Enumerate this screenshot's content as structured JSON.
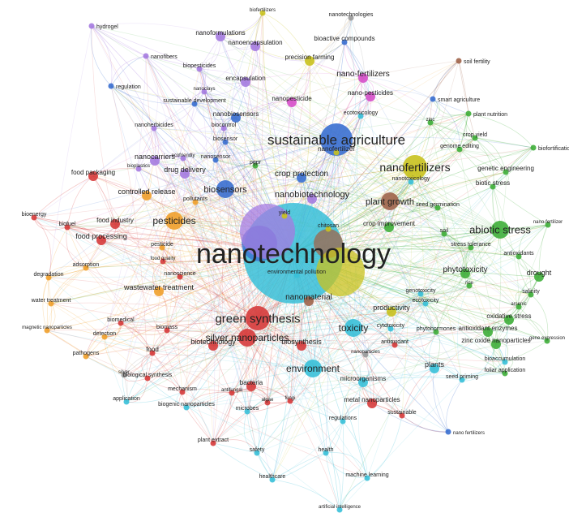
{
  "colors": {
    "red": "#d63b3b",
    "green": "#3fae3a",
    "blue": "#3a6fd0",
    "yellow": "#c9c21e",
    "purple": "#a57be0",
    "cyan": "#38c0d8",
    "orange": "#f0a02c",
    "magenta": "#d64fc9",
    "brown": "#a0644a",
    "gray": "#9a9a9a"
  },
  "network": {
    "hub": "nanotechnology",
    "nodes": [
      {
        "id": "nanotechnology",
        "label": "nanotechnology",
        "weight": 10,
        "cluster": "cyan",
        "fs": 34
      },
      {
        "id": "sustainable_agriculture",
        "label": "sustainable agriculture",
        "weight": 5,
        "cluster": "blue",
        "fs": 17
      },
      {
        "id": "nanofertilizers",
        "label": "nanofertilizers",
        "weight": 4,
        "cluster": "yellow",
        "fs": 14
      },
      {
        "id": "green_synthesis",
        "label": "green synthesis",
        "weight": 4,
        "cluster": "red",
        "fs": 15
      },
      {
        "id": "abiotic_stress",
        "label": "abiotic stress",
        "weight": 3,
        "cluster": "green",
        "fs": 13
      },
      {
        "id": "toxicity",
        "label": "toxicity",
        "weight": 3,
        "cluster": "cyan",
        "fs": 12
      },
      {
        "id": "silver_np",
        "label": "silver nanoparticles",
        "weight": 3,
        "cluster": "red",
        "fs": 12
      },
      {
        "id": "environment",
        "label": "environment",
        "weight": 3,
        "cluster": "cyan",
        "fs": 12
      },
      {
        "id": "pesticides",
        "label": "pesticides",
        "weight": 3,
        "cluster": "orange",
        "fs": 12
      },
      {
        "id": "biosensors",
        "label": "biosensors",
        "weight": 3,
        "cluster": "blue",
        "fs": 11
      },
      {
        "id": "plant_growth",
        "label": "plant growth",
        "weight": 3,
        "cluster": "brown",
        "fs": 11
      },
      {
        "id": "nanobiotechnology",
        "label": "nanobiotechnology",
        "weight": 2,
        "cluster": "purple",
        "fs": 11
      },
      {
        "id": "phytotoxicity",
        "label": "phytotoxicity",
        "weight": 2,
        "cluster": "green",
        "fs": 10
      },
      {
        "id": "nano_fertilizers",
        "label": "nano-fertilizers",
        "weight": 2,
        "cluster": "magenta",
        "fs": 10
      },
      {
        "id": "crop_protection",
        "label": "crop protection",
        "weight": 2,
        "cluster": "blue",
        "fs": 10
      },
      {
        "id": "nanomaterial",
        "label": "nanomaterial",
        "weight": 2,
        "cluster": "brown",
        "fs": 10
      },
      {
        "id": "biosynthesis",
        "label": "biosynthesis",
        "weight": 2,
        "cluster": "red",
        "fs": 9
      },
      {
        "id": "biotechnology",
        "label": "biotechnology",
        "weight": 2,
        "cluster": "red",
        "fs": 9
      },
      {
        "id": "drug_delivery",
        "label": "drug delivery",
        "weight": 2,
        "cluster": "purple",
        "fs": 9
      },
      {
        "id": "nanocarriers",
        "label": "nanocarriers",
        "weight": 2,
        "cluster": "purple",
        "fs": 9
      },
      {
        "id": "controlled_release",
        "label": "controlled release",
        "weight": 2,
        "cluster": "orange",
        "fs": 9
      },
      {
        "id": "nanobiosensors",
        "label": "nanobiosensors",
        "weight": 2,
        "cluster": "blue",
        "fs": 8
      },
      {
        "id": "nanopesticide",
        "label": "nanopesticide",
        "weight": 2,
        "cluster": "magenta",
        "fs": 8
      },
      {
        "id": "nano_pesticides",
        "label": "nano-pesticides",
        "weight": 2,
        "cluster": "magenta",
        "fs": 8
      },
      {
        "id": "productivity",
        "label": "productivity",
        "weight": 2,
        "cluster": "yellow",
        "fs": 9
      },
      {
        "id": "plants",
        "label": "plants",
        "weight": 2,
        "cluster": "cyan",
        "fs": 9
      },
      {
        "id": "drought",
        "label": "drought",
        "weight": 2,
        "cluster": "green",
        "fs": 9
      },
      {
        "id": "crop_improvement",
        "label": "crop improvement",
        "weight": 2,
        "cluster": "green",
        "fs": 8
      },
      {
        "id": "food_processing",
        "label": "food processing",
        "weight": 2,
        "cluster": "red",
        "fs": 9
      },
      {
        "id": "food_industry",
        "label": "food industry",
        "weight": 2,
        "cluster": "red",
        "fs": 8
      },
      {
        "id": "food_packaging",
        "label": "food packaging",
        "weight": 2,
        "cluster": "red",
        "fs": 8
      },
      {
        "id": "wastewater_treatment",
        "label": "wastewater treatment",
        "weight": 2,
        "cluster": "orange",
        "fs": 9
      },
      {
        "id": "bacteria",
        "label": "bacteria",
        "weight": 2,
        "cluster": "red",
        "fs": 8
      },
      {
        "id": "microorganisms",
        "label": "microorganisms",
        "weight": 2,
        "cluster": "cyan",
        "fs": 8
      },
      {
        "id": "metal_np",
        "label": "metal nanoparticles",
        "weight": 2,
        "cluster": "red",
        "fs": 8
      },
      {
        "id": "antioxidant_enzymes",
        "label": "antioxidant enzymes",
        "weight": 2,
        "cluster": "green",
        "fs": 8
      },
      {
        "id": "zinc_oxide_np",
        "label": "zinc oxide nanoparticles",
        "weight": 2,
        "cluster": "green",
        "fs": 8
      },
      {
        "id": "oxidative_stress",
        "label": "oxidative stress",
        "weight": 2,
        "cluster": "green",
        "fs": 8
      },
      {
        "id": "precision_farming",
        "label": "precision farming",
        "weight": 2,
        "cluster": "yellow",
        "fs": 8
      },
      {
        "id": "bioactive_compounds",
        "label": "bioactive compounds",
        "weight": 1,
        "cluster": "blue",
        "fs": 8
      },
      {
        "id": "nanoencapsulation",
        "label": "nanoencapsulation",
        "weight": 2,
        "cluster": "purple",
        "fs": 8
      },
      {
        "id": "nanoformulations",
        "label": "nanoformulations",
        "weight": 2,
        "cluster": "purple",
        "fs": 8
      },
      {
        "id": "encapsulation",
        "label": "encapsulation",
        "weight": 2,
        "cluster": "purple",
        "fs": 8
      },
      {
        "id": "biopesticides",
        "label": "biopesticides",
        "weight": 1,
        "cluster": "purple",
        "fs": 7
      },
      {
        "id": "sustainable_development",
        "label": "sustainable development",
        "weight": 1,
        "cluster": "blue",
        "fs": 7
      },
      {
        "id": "nanoherbicides",
        "label": "nanoherbicides",
        "weight": 1,
        "cluster": "purple",
        "fs": 7
      },
      {
        "id": "biocontrol",
        "label": "biocontrol",
        "weight": 1,
        "cluster": "purple",
        "fs": 7
      },
      {
        "id": "biosensor",
        "label": "biosensor",
        "weight": 1,
        "cluster": "blue",
        "fs": 7
      },
      {
        "id": "nanosensor",
        "label": "nanosensor",
        "weight": 1,
        "cluster": "blue",
        "fs": 7
      },
      {
        "id": "pgpr",
        "label": "pgpr",
        "weight": 1,
        "cluster": "green",
        "fs": 7
      },
      {
        "id": "ecotoxicology",
        "label": "ecotoxicology",
        "weight": 1,
        "cluster": "cyan",
        "fs": 7
      },
      {
        "id": "nanofertilizer",
        "label": "nanofertilizer",
        "weight": 1,
        "cluster": "yellow",
        "fs": 8
      },
      {
        "id": "smart_agriculture",
        "label": "smart agriculture",
        "weight": 1,
        "cluster": "blue",
        "fs": 7
      },
      {
        "id": "plant_nutrition",
        "label": "plant nutrition",
        "weight": 1,
        "cluster": "green",
        "fs": 7
      },
      {
        "id": "zinc",
        "label": "zinc",
        "weight": 1,
        "cluster": "green",
        "fs": 6
      },
      {
        "id": "crop_yield",
        "label": "crop yield",
        "weight": 1,
        "cluster": "green",
        "fs": 7
      },
      {
        "id": "genome_editing",
        "label": "genome editing",
        "weight": 1,
        "cluster": "green",
        "fs": 7
      },
      {
        "id": "biofortification",
        "label": "biofortification",
        "weight": 1,
        "cluster": "green",
        "fs": 7
      },
      {
        "id": "genetic_engineering",
        "label": "genetic engineering",
        "weight": 1,
        "cluster": "green",
        "fs": 8
      },
      {
        "id": "biotic_stress",
        "label": "biotic stress",
        "weight": 1,
        "cluster": "green",
        "fs": 8
      },
      {
        "id": "nanotoxicology",
        "label": "nanotoxicology",
        "weight": 1,
        "cluster": "cyan",
        "fs": 7
      },
      {
        "id": "seed_germination",
        "label": "seed germination",
        "weight": 1,
        "cluster": "green",
        "fs": 7
      },
      {
        "id": "nano_fertilizer",
        "label": "nano-fertilizer",
        "weight": 1,
        "cluster": "green",
        "fs": 6
      },
      {
        "id": "soil",
        "label": "soil",
        "weight": 1,
        "cluster": "green",
        "fs": 7
      },
      {
        "id": "stress_tolerance",
        "label": "stress tolerance",
        "weight": 1,
        "cluster": "green",
        "fs": 7
      },
      {
        "id": "antioxidants",
        "label": "antioxidants",
        "weight": 1,
        "cluster": "green",
        "fs": 7
      },
      {
        "id": "salinity",
        "label": "salinity",
        "weight": 1,
        "cluster": "green",
        "fs": 7
      },
      {
        "id": "rice",
        "label": "rice",
        "weight": 1,
        "cluster": "green",
        "fs": 6
      },
      {
        "id": "arsenic",
        "label": "arsenic",
        "weight": 1,
        "cluster": "green",
        "fs": 6
      },
      {
        "id": "gene_expression",
        "label": "gene expression",
        "weight": 1,
        "cluster": "green",
        "fs": 6
      },
      {
        "id": "genotoxicity",
        "label": "genotoxicity",
        "weight": 1,
        "cluster": "cyan",
        "fs": 7
      },
      {
        "id": "ecotoxicity",
        "label": "ecotoxicity",
        "weight": 1,
        "cluster": "cyan",
        "fs": 7
      },
      {
        "id": "cytotoxicity",
        "label": "cytotoxicity",
        "weight": 1,
        "cluster": "cyan",
        "fs": 7
      },
      {
        "id": "phytohormones",
        "label": "phytohormones",
        "weight": 1,
        "cluster": "green",
        "fs": 7
      },
      {
        "id": "antioxidant",
        "label": "antioxidant",
        "weight": 1,
        "cluster": "red",
        "fs": 7
      },
      {
        "id": "bioaccumulation",
        "label": "bioaccumulation",
        "weight": 1,
        "cluster": "cyan",
        "fs": 7
      },
      {
        "id": "foliar_application",
        "label": "foliar application",
        "weight": 1,
        "cluster": "green",
        "fs": 7
      },
      {
        "id": "seed_priming",
        "label": "seed priming",
        "weight": 1,
        "cluster": "cyan",
        "fs": 7
      },
      {
        "id": "nano_fertilizers2",
        "label": "nano fertilizers",
        "weight": 1,
        "cluster": "blue",
        "fs": 6
      },
      {
        "id": "sustainable",
        "label": "sustainable",
        "weight": 1,
        "cluster": "red",
        "fs": 7
      },
      {
        "id": "regulations",
        "label": "regulations",
        "weight": 1,
        "cluster": "cyan",
        "fs": 7
      },
      {
        "id": "microbes",
        "label": "microbes",
        "weight": 1,
        "cluster": "cyan",
        "fs": 7
      },
      {
        "id": "algae",
        "label": "algae",
        "weight": 1,
        "cluster": "red",
        "fs": 6
      },
      {
        "id": "fungi",
        "label": "fungi",
        "weight": 1,
        "cluster": "red",
        "fs": 6
      },
      {
        "id": "antifungal",
        "label": "antifungal",
        "weight": 1,
        "cluster": "red",
        "fs": 6
      },
      {
        "id": "mechanism",
        "label": "mechanism",
        "weight": 1,
        "cluster": "red",
        "fs": 7
      },
      {
        "id": "biological_synthesis",
        "label": "biological synthesis",
        "weight": 1,
        "cluster": "red",
        "fs": 7
      },
      {
        "id": "biogenic_np",
        "label": "biogenic nanoparticles",
        "weight": 1,
        "cluster": "cyan",
        "fs": 7
      },
      {
        "id": "application",
        "label": "application",
        "weight": 1,
        "cluster": "cyan",
        "fs": 7
      },
      {
        "id": "plant_extract",
        "label": "plant extract",
        "weight": 1,
        "cluster": "red",
        "fs": 7
      },
      {
        "id": "safety",
        "label": "safety",
        "weight": 1,
        "cluster": "cyan",
        "fs": 7
      },
      {
        "id": "health",
        "label": "health",
        "weight": 1,
        "cluster": "cyan",
        "fs": 7
      },
      {
        "id": "healthcare",
        "label": "healthcare",
        "weight": 1,
        "cluster": "cyan",
        "fs": 7
      },
      {
        "id": "machine_learning",
        "label": "machine learning",
        "weight": 1,
        "cluster": "cyan",
        "fs": 7
      },
      {
        "id": "artificial_intelligence",
        "label": "artificial intelligence",
        "weight": 1,
        "cluster": "cyan",
        "fs": 6
      },
      {
        "id": "food",
        "label": "food",
        "weight": 1,
        "cluster": "red",
        "fs": 8
      },
      {
        "id": "pathogens",
        "label": "pathogens",
        "weight": 1,
        "cluster": "orange",
        "fs": 7
      },
      {
        "id": "detection",
        "label": "detection",
        "weight": 1,
        "cluster": "orange",
        "fs": 7
      },
      {
        "id": "magnetic_np",
        "label": "magnetic nanoparticles",
        "weight": 1,
        "cluster": "orange",
        "fs": 6
      },
      {
        "id": "biomedical",
        "label": "biomedical",
        "weight": 1,
        "cluster": "red",
        "fs": 7
      },
      {
        "id": "biomass",
        "label": "biomass",
        "weight": 1,
        "cluster": "red",
        "fs": 7
      },
      {
        "id": "water_treatment",
        "label": "water treatment",
        "weight": 1,
        "cluster": "orange",
        "fs": 7
      },
      {
        "id": "degradation",
        "label": "degradation",
        "weight": 1,
        "cluster": "orange",
        "fs": 7
      },
      {
        "id": "adsorption",
        "label": "adsorption",
        "weight": 1,
        "cluster": "orange",
        "fs": 7
      },
      {
        "id": "nanoscience",
        "label": "nanoscience",
        "weight": 1,
        "cluster": "red",
        "fs": 7
      },
      {
        "id": "food_quality",
        "label": "food quality",
        "weight": 1,
        "cluster": "red",
        "fs": 6
      },
      {
        "id": "pesticide",
        "label": "pesticide",
        "weight": 1,
        "cluster": "orange",
        "fs": 7
      },
      {
        "id": "bioenergy",
        "label": "bioenergy",
        "weight": 1,
        "cluster": "red",
        "fs": 7
      },
      {
        "id": "biofuel",
        "label": "biofuel",
        "weight": 1,
        "cluster": "red",
        "fs": 7
      },
      {
        "id": "pollutants",
        "label": "pollutants",
        "weight": 1,
        "cluster": "orange",
        "fs": 7
      },
      {
        "id": "chitosan",
        "label": "chitosan",
        "weight": 1,
        "cluster": "yellow",
        "fs": 7
      },
      {
        "id": "yield",
        "label": "yield",
        "weight": 1,
        "cluster": "yellow",
        "fs": 7
      },
      {
        "id": "env_pollution",
        "label": "environmental pollution",
        "weight": 1,
        "cluster": "cyan",
        "fs": 7
      },
      {
        "id": "regulation",
        "label": "regulation",
        "weight": 1,
        "cluster": "blue",
        "fs": 7
      },
      {
        "id": "nanofibers",
        "label": "nanofibers",
        "weight": 1,
        "cluster": "purple",
        "fs": 7
      },
      {
        "id": "hydrogel",
        "label": "hydrogel",
        "weight": 1,
        "cluster": "purple",
        "fs": 7
      },
      {
        "id": "biofertilizers",
        "label": "biofertilizers",
        "weight": 1,
        "cluster": "yellow",
        "fs": 6
      },
      {
        "id": "nanotechnologies",
        "label": "nanotechnologies",
        "weight": 1,
        "cluster": "gray",
        "fs": 7
      },
      {
        "id": "soil_fertility",
        "label": "soil fertility",
        "weight": 1,
        "cluster": "brown",
        "fs": 7
      },
      {
        "id": "bioplastics",
        "label": "bioplastics",
        "weight": 1,
        "cluster": "purple",
        "fs": 6
      },
      {
        "id": "ecofriendly",
        "label": "ecofriendly",
        "weight": 1,
        "cluster": "purple",
        "fs": 6
      },
      {
        "id": "nanoclays",
        "label": "nanoclays",
        "weight": 1,
        "cluster": "purple",
        "fs": 6
      },
      {
        "id": "silver",
        "label": "silver",
        "weight": 1,
        "cluster": "gray",
        "fs": 6
      },
      {
        "id": "nanoparticles_small",
        "label": "nanoparticles",
        "weight": 1,
        "cluster": "gray",
        "fs": 6
      }
    ]
  }
}
